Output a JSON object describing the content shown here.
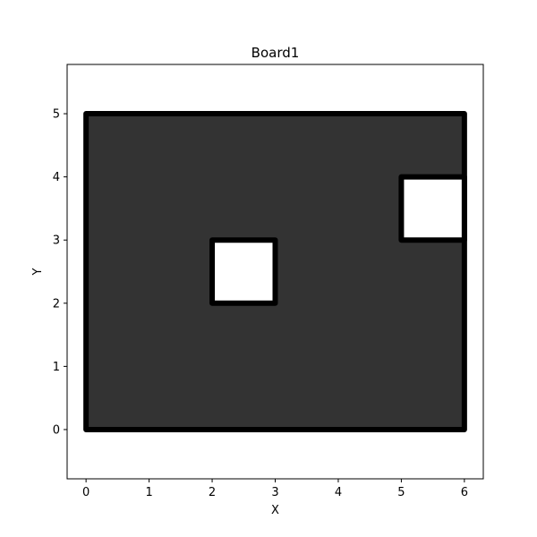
{
  "chart_data": {
    "type": "polygon",
    "title": "Board1",
    "xlabel": "X",
    "ylabel": "Y",
    "xlim": [
      -0.3,
      6.3
    ],
    "ylim": [
      -0.78,
      5.78
    ],
    "xticks": [
      0,
      1,
      2,
      3,
      4,
      5,
      6
    ],
    "yticks": [
      0,
      1,
      2,
      3,
      4,
      5
    ],
    "grid": false,
    "fill_color": "#333333",
    "edge_color": "#000000",
    "hole_fill_color": "#ffffff",
    "outline": [
      [
        0,
        0
      ],
      [
        6,
        0
      ],
      [
        6,
        5
      ],
      [
        0,
        5
      ]
    ],
    "holes": [
      [
        [
          2,
          2
        ],
        [
          3,
          2
        ],
        [
          3,
          3
        ],
        [
          2,
          3
        ]
      ],
      [
        [
          5,
          3
        ],
        [
          6,
          3
        ],
        [
          6,
          4
        ],
        [
          5,
          4
        ]
      ]
    ]
  }
}
